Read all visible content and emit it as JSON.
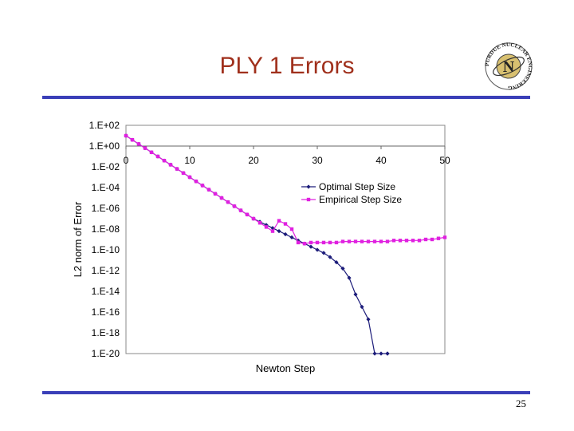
{
  "slide": {
    "title": "PLY 1 Errors",
    "page_number": "25",
    "logo": {
      "icon": "purdue-nuclear-engineering-seal",
      "text": "PURDUE NUCLEAR ENGINEERING",
      "letter": "N"
    }
  },
  "colors": {
    "title": "#a0301c",
    "rule": "#3a3fb8",
    "optimal": "#1c1c7a",
    "empirical": "#e020e0"
  },
  "chart_data": {
    "type": "line",
    "title": "",
    "xlabel": "Newton Step",
    "ylabel": "L2 norm of Error",
    "x_ticks": [
      "0",
      "10",
      "20",
      "30",
      "40",
      "50"
    ],
    "x_tick_values": [
      0,
      10,
      20,
      30,
      40,
      50
    ],
    "y_ticks": [
      "1.E+02",
      "1.E+00",
      "1.E-02",
      "1.E-04",
      "1.E-06",
      "1.E-08",
      "1.E-10",
      "1.E-12",
      "1.E-14",
      "1.E-16",
      "1.E-18",
      "1.E-20"
    ],
    "y_tick_exponents": [
      2,
      0,
      -2,
      -4,
      -6,
      -8,
      -10,
      -12,
      -14,
      -16,
      -18,
      -20
    ],
    "xlim": [
      0,
      50
    ],
    "ylim_exponent": [
      -20,
      2
    ],
    "y_scale": "log",
    "grid": "horizontal",
    "legend_position": "inside-right",
    "series": [
      {
        "name": "Optimal Step Size",
        "marker": "diamond",
        "color": "#1c1c7a",
        "x": [
          0,
          1,
          2,
          3,
          4,
          5,
          6,
          7,
          8,
          9,
          10,
          11,
          12,
          13,
          14,
          15,
          16,
          17,
          18,
          19,
          20,
          21,
          22,
          23,
          24,
          25,
          26,
          27,
          28,
          29,
          30,
          31,
          32,
          33,
          34,
          35,
          36,
          37,
          38,
          39,
          40,
          41,
          41
        ],
        "log10_y": [
          1.0,
          0.6,
          0.2,
          -0.2,
          -0.6,
          -1.0,
          -1.4,
          -1.8,
          -2.2,
          -2.6,
          -3.0,
          -3.4,
          -3.8,
          -4.2,
          -4.6,
          -5.0,
          -5.4,
          -5.8,
          -6.2,
          -6.6,
          -7.0,
          -7.3,
          -7.6,
          -7.9,
          -8.2,
          -8.5,
          -8.8,
          -9.1,
          -9.4,
          -9.7,
          -10.0,
          -10.3,
          -10.7,
          -11.2,
          -11.8,
          -12.7,
          -14.3,
          -15.5,
          -16.7,
          -20.0,
          -20.0,
          -20.0,
          -20.0
        ]
      },
      {
        "name": "Empirical Step Size",
        "marker": "square",
        "color": "#e020e0",
        "x": [
          0,
          1,
          2,
          3,
          4,
          5,
          6,
          7,
          8,
          9,
          10,
          11,
          12,
          13,
          14,
          15,
          16,
          17,
          18,
          19,
          20,
          21,
          22,
          23,
          24,
          25,
          26,
          27,
          28,
          29,
          30,
          31,
          32,
          33,
          34,
          35,
          36,
          37,
          38,
          39,
          40,
          41,
          42,
          43,
          44,
          45,
          46,
          47,
          48,
          49,
          50
        ],
        "log10_y": [
          1.0,
          0.6,
          0.2,
          -0.2,
          -0.6,
          -1.0,
          -1.4,
          -1.8,
          -2.2,
          -2.6,
          -3.0,
          -3.4,
          -3.8,
          -4.2,
          -4.6,
          -5.0,
          -5.4,
          -5.8,
          -6.2,
          -6.6,
          -7.0,
          -7.4,
          -7.8,
          -8.2,
          -7.2,
          -7.5,
          -8.0,
          -9.3,
          -9.4,
          -9.3,
          -9.3,
          -9.3,
          -9.3,
          -9.3,
          -9.2,
          -9.2,
          -9.2,
          -9.2,
          -9.2,
          -9.2,
          -9.2,
          -9.2,
          -9.1,
          -9.1,
          -9.1,
          -9.1,
          -9.1,
          -9.0,
          -9.0,
          -8.9,
          -8.8
        ]
      }
    ]
  }
}
